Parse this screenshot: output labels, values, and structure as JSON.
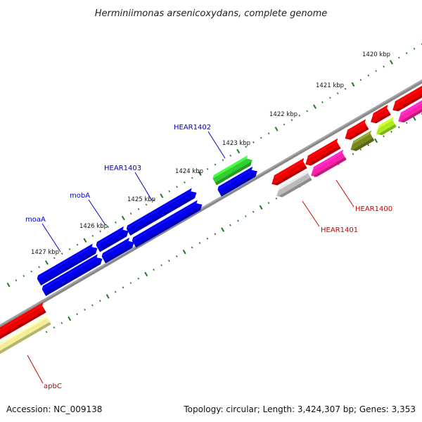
{
  "title": "Herminiimonas arsenicoxydans, complete genome",
  "footer": {
    "accession": "Accession: NC_009138",
    "summary": "Topology: circular; Length: 3,424,307 bp; Genes: 3,353"
  },
  "kbp_labels": [
    "1420 kbp",
    "1421 kbp",
    "1422 kbp",
    "1423 kbp",
    "1424 kbp",
    "1425 kbp",
    "1426 kbp",
    "1427 kbp"
  ],
  "gene_labels": [
    {
      "text": "moaA",
      "color": "#0000cc"
    },
    {
      "text": "mobA",
      "color": "#0000cc"
    },
    {
      "text": "HEAR1403",
      "color": "#0000cc"
    },
    {
      "text": "HEAR1402",
      "color": "#0000cc"
    },
    {
      "text": "HEAR1401",
      "color": "#cc0000"
    },
    {
      "text": "HEAR1400",
      "color": "#cc0000"
    },
    {
      "text": "apbC",
      "color": "#cc0000"
    }
  ],
  "colors": {
    "blue_cds": "#0000ee",
    "red_cds": "#ee0000",
    "green_cds": "#33cc33",
    "magenta_cds": "#ff22aa",
    "olive_cds": "#778822",
    "lime_cds": "#aaee22",
    "gray_cds": "#bbbbbb",
    "yellow_cds": "#f4ee99",
    "backbone": "#888888",
    "tick": "#227722"
  }
}
